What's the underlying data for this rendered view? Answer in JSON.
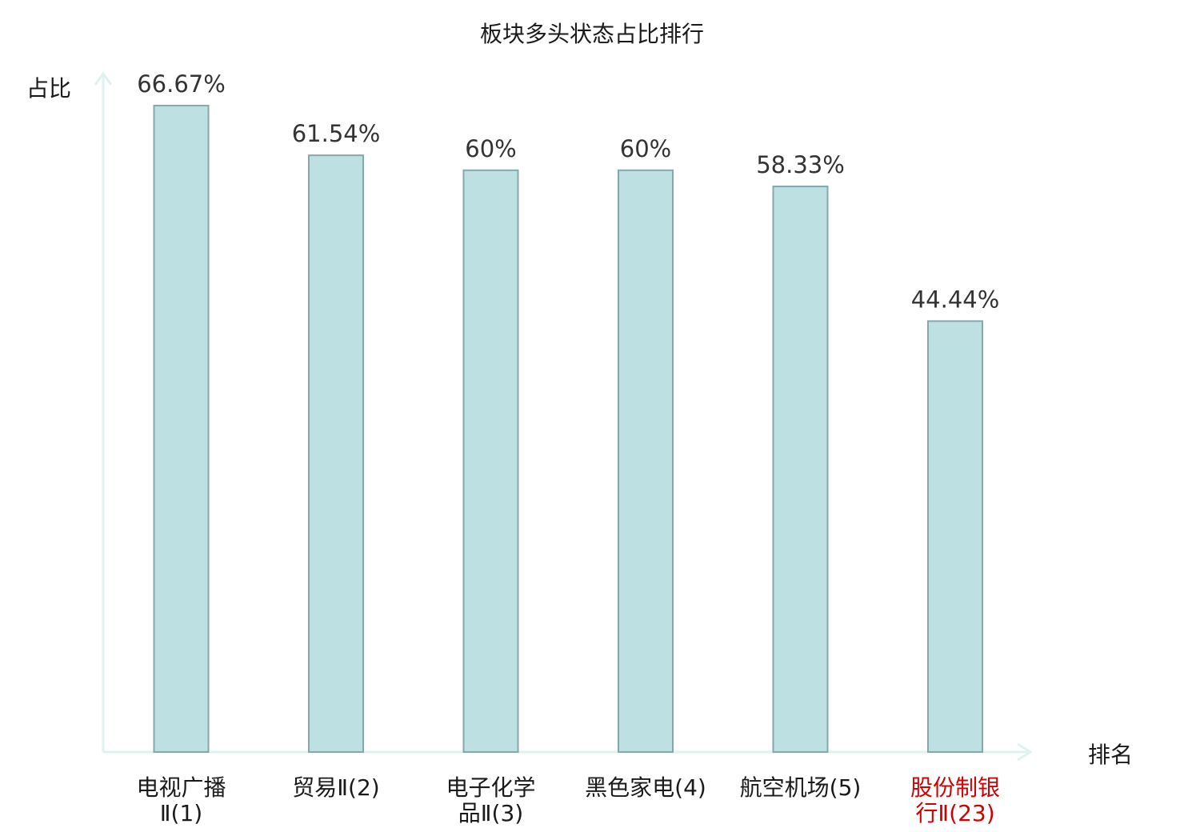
{
  "chart_data": {
    "type": "bar",
    "title": "板块多头状态占比排行",
    "ylabel": "占比",
    "xlabel": "排名",
    "ylim": [
      0,
      70
    ],
    "grid": false,
    "categories": [
      {
        "name": "电视广播",
        "code": "Ⅱ(1)",
        "lines": [
          "电视广播",
          "Ⅱ(1)"
        ],
        "highlight": false
      },
      {
        "name": "贸易",
        "code": "Ⅱ(2)",
        "lines": [
          "贸易Ⅱ(2)"
        ],
        "highlight": false
      },
      {
        "name": "电子化学",
        "code": "品Ⅱ(3)",
        "lines": [
          "电子化学",
          "品Ⅱ(3)"
        ],
        "highlight": false
      },
      {
        "name": "黑色家电",
        "code": "(4)",
        "lines": [
          "黑色家电(4)"
        ],
        "highlight": false
      },
      {
        "name": "航空机场",
        "code": "(5)",
        "lines": [
          "航空机场(5)"
        ],
        "highlight": false
      },
      {
        "name": "股份制银",
        "code": "行Ⅱ(23)",
        "lines": [
          "股份制银",
          "行Ⅱ(23)"
        ],
        "highlight": true
      }
    ],
    "values": [
      66.67,
      61.54,
      60,
      60,
      58.33,
      44.44
    ],
    "value_labels": [
      "66.67%",
      "61.54%",
      "60%",
      "60%",
      "58.33%",
      "44.44%"
    ],
    "colors": {
      "bar_fill": "#bde0e3",
      "bar_stroke": "#86a8ab",
      "axis": "#e0f2ef",
      "highlight_text": "#d40000"
    }
  }
}
